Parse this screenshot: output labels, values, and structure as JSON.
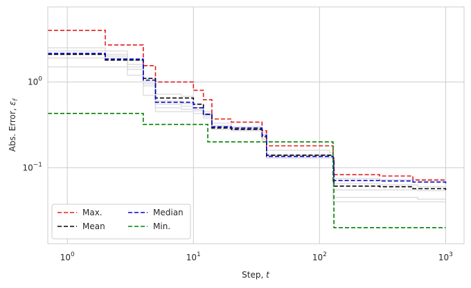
{
  "chart_data": {
    "type": "line",
    "title": "",
    "xlabel": "Step, t",
    "ylabel": "Abs. Error, εf",
    "x_scale": "log",
    "y_scale": "log",
    "xlim": [
      0.7,
      1400
    ],
    "ylim": [
      0.013,
      7.5
    ],
    "grid": true,
    "legend_position": "lower-left",
    "x_ticks": [
      {
        "value": 1,
        "base": "10",
        "exp": "0"
      },
      {
        "value": 10,
        "base": "10",
        "exp": "1"
      },
      {
        "value": 100,
        "base": "10",
        "exp": "2"
      },
      {
        "value": 1000,
        "base": "10",
        "exp": "3"
      }
    ],
    "y_ticks": [
      {
        "value": 1,
        "base": "10",
        "exp": "0"
      },
      {
        "value": 0.1,
        "base": "10",
        "exp": "−1"
      }
    ],
    "background_runs": [
      {
        "x": [
          0.7,
          1,
          2,
          3,
          4,
          5,
          8,
          10,
          12,
          14,
          20,
          35,
          38,
          120,
          128,
          300,
          600,
          1000
        ],
        "y": [
          2.5,
          2.5,
          2.3,
          1.6,
          1.1,
          0.72,
          0.68,
          0.55,
          0.45,
          0.33,
          0.3,
          0.26,
          0.16,
          0.15,
          0.075,
          0.072,
          0.07,
          0.068
        ]
      },
      {
        "x": [
          0.7,
          1,
          2,
          3,
          4,
          5,
          8,
          10,
          12,
          14,
          20,
          35,
          38,
          120,
          128,
          300,
          600,
          1000
        ],
        "y": [
          2.3,
          2.3,
          2.0,
          1.5,
          1.0,
          0.6,
          0.56,
          0.5,
          0.42,
          0.31,
          0.29,
          0.24,
          0.14,
          0.14,
          0.065,
          0.063,
          0.06,
          0.058
        ]
      },
      {
        "x": [
          0.7,
          1,
          2,
          3,
          4,
          5,
          8,
          10,
          12,
          14,
          20,
          35,
          38,
          120,
          128,
          300,
          600,
          1000
        ],
        "y": [
          1.9,
          1.9,
          1.9,
          1.4,
          0.95,
          0.5,
          0.48,
          0.46,
          0.4,
          0.3,
          0.28,
          0.22,
          0.13,
          0.13,
          0.055,
          0.055,
          0.054,
          0.053
        ]
      },
      {
        "x": [
          0.7,
          1,
          2,
          3,
          4,
          5,
          8,
          10,
          12,
          14,
          20,
          35,
          38,
          120,
          128,
          300,
          600,
          1000
        ],
        "y": [
          1.5,
          1.5,
          1.5,
          1.2,
          0.7,
          0.45,
          0.45,
          0.43,
          0.38,
          0.28,
          0.27,
          0.21,
          0.13,
          0.13,
          0.045,
          0.045,
          0.043,
          0.042
        ]
      },
      {
        "x": [
          0.7,
          1,
          2,
          3,
          4,
          5,
          8,
          10,
          12,
          14,
          20,
          35,
          38,
          120,
          128,
          300,
          600,
          1000
        ],
        "y": [
          2.1,
          2.1,
          2.1,
          1.8,
          0.9,
          0.55,
          0.52,
          0.48,
          0.41,
          0.3,
          0.28,
          0.23,
          0.14,
          0.135,
          0.04,
          0.04,
          0.04,
          0.038
        ]
      }
    ],
    "series": [
      {
        "name": "Max.",
        "color": "#e41a1c",
        "x": [
          0.7,
          1,
          2,
          4,
          5,
          8,
          10,
          12,
          14,
          20,
          35,
          38,
          120,
          128,
          130,
          300,
          550,
          1000
        ],
        "y": [
          4.0,
          4.0,
          2.7,
          1.55,
          1.0,
          1.0,
          0.8,
          0.62,
          0.37,
          0.34,
          0.27,
          0.18,
          0.18,
          0.13,
          0.083,
          0.08,
          0.072,
          0.07
        ]
      },
      {
        "name": "Mean",
        "color": "#000000",
        "x": [
          0.7,
          1,
          2,
          4,
          5,
          8,
          10,
          12,
          14,
          20,
          35,
          38,
          120,
          128,
          130,
          300,
          550,
          1000
        ],
        "y": [
          2.1,
          2.1,
          1.8,
          1.1,
          0.65,
          0.65,
          0.55,
          0.42,
          0.29,
          0.28,
          0.23,
          0.14,
          0.14,
          0.125,
          0.061,
          0.06,
          0.057,
          0.055
        ]
      },
      {
        "name": "Median",
        "color": "#0000cc",
        "x": [
          0.7,
          1,
          2,
          4,
          5,
          8,
          10,
          12,
          14,
          20,
          35,
          38,
          120,
          128,
          130,
          300,
          550,
          1000
        ],
        "y": [
          2.15,
          2.15,
          1.85,
          1.05,
          0.58,
          0.58,
          0.5,
          0.42,
          0.3,
          0.29,
          0.24,
          0.135,
          0.135,
          0.125,
          0.071,
          0.07,
          0.068,
          0.066
        ]
      },
      {
        "name": "Min.",
        "color": "#008000",
        "x": [
          0.7,
          1,
          3.2,
          4,
          8.5,
          13,
          128,
          130,
          1000
        ],
        "y": [
          0.43,
          0.43,
          0.43,
          0.32,
          0.32,
          0.2,
          0.07,
          0.02,
          0.02
        ]
      }
    ]
  }
}
